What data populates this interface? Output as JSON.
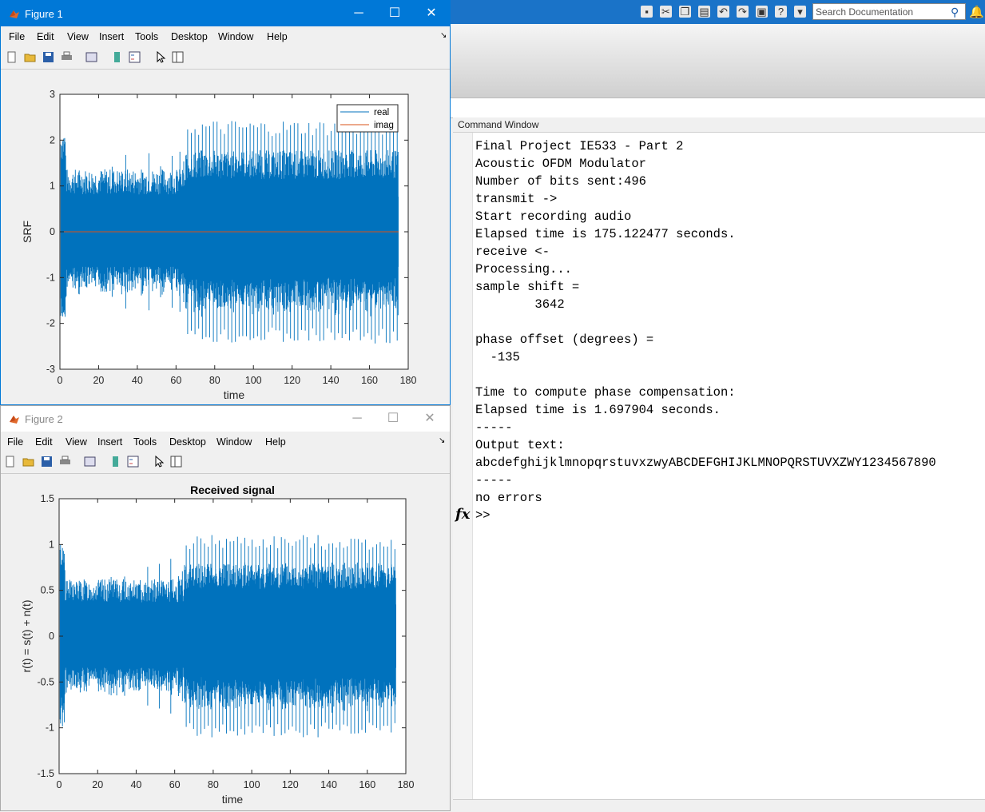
{
  "main": {
    "search_placeholder": "Search Documentation",
    "command_window_title": "Command Window",
    "prompt_icon": "fx",
    "lines": [
      "Final Project IE533 - Part 2",
      "Acoustic OFDM Modulator",
      "Number of bits sent:496",
      "transmit ->",
      "Start recording audio",
      "Elapsed time is 175.122477 seconds.",
      "receive <-",
      "Processing...",
      "sample shift =",
      "        3642",
      "",
      "phase offset (degrees) =",
      "  -135",
      "",
      "Time to compute phase compensation:",
      "Elapsed time is 1.697904 seconds.",
      "-----",
      "Output text:",
      "abcdefghijklmnopqrstuvxzwyABCDEFGHIJKLMNOPQRSTUVXZWY1234567890",
      "-----",
      "no errors",
      ">>"
    ]
  },
  "figure1": {
    "title": "Figure 1",
    "menu": [
      "File",
      "Edit",
      "View",
      "Insert",
      "Tools",
      "Desktop",
      "Window",
      "Help"
    ],
    "chart_data": {
      "type": "line",
      "title": "",
      "xlabel": "time",
      "ylabel": "SRF",
      "xlim": [
        0,
        180
      ],
      "ylim": [
        -3,
        3
      ],
      "xticks": [
        "0",
        "20",
        "40",
        "60",
        "80",
        "100",
        "120",
        "140",
        "160",
        "180"
      ],
      "yticks": [
        "3",
        "2",
        "1",
        "0",
        "-1",
        "-2",
        "-3"
      ],
      "legend_position": "top-right",
      "series": [
        {
          "name": "real",
          "color": "#0072bd",
          "description_envelope": [
            [
              0,
              2.0
            ],
            [
              2,
              1.2
            ],
            [
              30,
              1.2
            ],
            [
              62,
              1.1
            ],
            [
              66,
              2.5
            ],
            [
              175,
              2.5
            ]
          ]
        },
        {
          "name": "imag",
          "color": "#d95319",
          "values_constant": 0
        }
      ]
    }
  },
  "figure2": {
    "title": "Figure 2",
    "menu": [
      "File",
      "Edit",
      "View",
      "Insert",
      "Tools",
      "Desktop",
      "Window",
      "Help"
    ],
    "chart_data": {
      "type": "line",
      "title": "Received signal",
      "xlabel": "time",
      "ylabel": "r(t) = s(t) + n(t)",
      "xlim": [
        0,
        180
      ],
      "ylim": [
        -1.5,
        1.5
      ],
      "xticks": [
        "0",
        "20",
        "40",
        "60",
        "80",
        "100",
        "120",
        "140",
        "160",
        "180"
      ],
      "yticks": [
        "1.5",
        "1",
        "0.5",
        "0",
        "-0.5",
        "-1",
        "-1.5"
      ],
      "series": [
        {
          "name": "",
          "color": "#0072bd"
        }
      ]
    }
  },
  "colors": {
    "titlebar_active": "#0078d7",
    "matlab_toolbar": "#1a73c8",
    "plot_line": "#0072bd",
    "imag_line": "#d95319"
  }
}
